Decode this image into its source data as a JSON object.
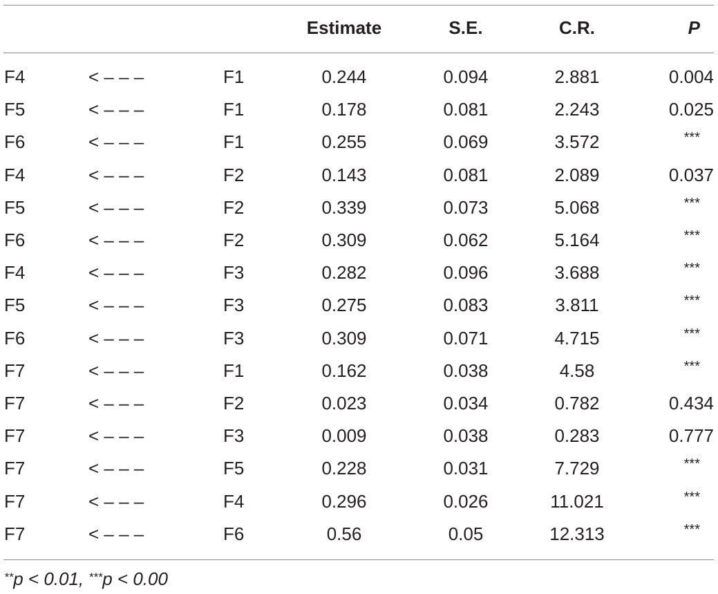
{
  "table": {
    "header": {
      "dep": "",
      "arrow": "",
      "ind": "",
      "estimate": "Estimate",
      "se": "S.E.",
      "cr": "C.R.",
      "p": "P"
    },
    "rows": [
      {
        "dep": "F4",
        "arrow": "< – – –",
        "ind": "F1",
        "estimate": "0.244",
        "se": "0.094",
        "cr": "2.881",
        "p": "0.004"
      },
      {
        "dep": "F5",
        "arrow": "< – – –",
        "ind": "F1",
        "estimate": "0.178",
        "se": "0.081",
        "cr": "2.243",
        "p": "0.025"
      },
      {
        "dep": "F6",
        "arrow": "< – – –",
        "ind": "F1",
        "estimate": "0.255",
        "se": "0.069",
        "cr": "3.572",
        "p": "***"
      },
      {
        "dep": "F4",
        "arrow": "< – – –",
        "ind": "F2",
        "estimate": "0.143",
        "se": "0.081",
        "cr": "2.089",
        "p": "0.037"
      },
      {
        "dep": "F5",
        "arrow": "< – – –",
        "ind": "F2",
        "estimate": "0.339",
        "se": "0.073",
        "cr": "5.068",
        "p": "***"
      },
      {
        "dep": "F6",
        "arrow": "< – – –",
        "ind": "F2",
        "estimate": "0.309",
        "se": "0.062",
        "cr": "5.164",
        "p": "***"
      },
      {
        "dep": "F4",
        "arrow": "< – – –",
        "ind": "F3",
        "estimate": "0.282",
        "se": "0.096",
        "cr": "3.688",
        "p": "***"
      },
      {
        "dep": "F5",
        "arrow": "< – – –",
        "ind": "F3",
        "estimate": "0.275",
        "se": "0.083",
        "cr": "3.811",
        "p": "***"
      },
      {
        "dep": "F6",
        "arrow": "< – – –",
        "ind": "F3",
        "estimate": "0.309",
        "se": "0.071",
        "cr": "4.715",
        "p": "***"
      },
      {
        "dep": "F7",
        "arrow": "< – – –",
        "ind": "F1",
        "estimate": "0.162",
        "se": "0.038",
        "cr": "4.58",
        "p": "***"
      },
      {
        "dep": "F7",
        "arrow": "< – – –",
        "ind": "F2",
        "estimate": "0.023",
        "se": "0.034",
        "cr": "0.782",
        "p": "0.434"
      },
      {
        "dep": "F7",
        "arrow": "< – – –",
        "ind": "F3",
        "estimate": "0.009",
        "se": "0.038",
        "cr": "0.283",
        "p": "0.777"
      },
      {
        "dep": "F7",
        "arrow": "< – – –",
        "ind": "F5",
        "estimate": "0.228",
        "se": "0.031",
        "cr": "7.729",
        "p": "***"
      },
      {
        "dep": "F7",
        "arrow": "< – – –",
        "ind": "F4",
        "estimate": "0.296",
        "se": "0.026",
        "cr": "11.021",
        "p": "***"
      },
      {
        "dep": "F7",
        "arrow": "< – – –",
        "ind": "F6",
        "estimate": "0.56",
        "se": "0.05",
        "cr": "12.313",
        "p": "***"
      }
    ]
  },
  "footnote": {
    "part1_stars": "**",
    "part1_text": "p < 0.01, ",
    "part2_stars": "***",
    "part2_text": "p < 0.00"
  }
}
